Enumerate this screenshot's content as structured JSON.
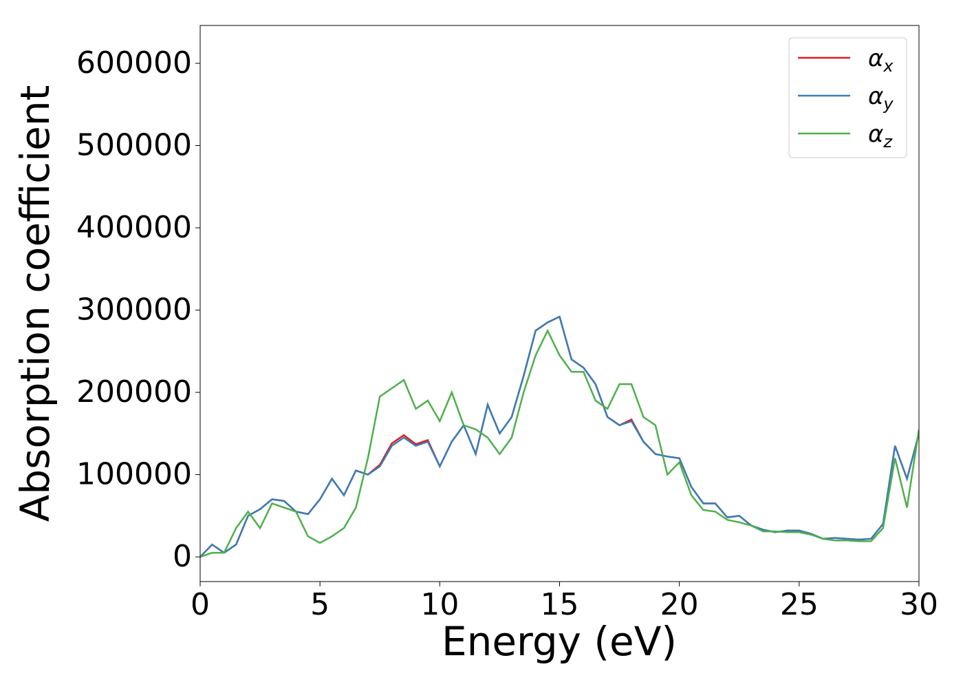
{
  "chart_data": {
    "type": "line",
    "xlabel": "Energy (eV)",
    "ylabel": "Absorption coefficient",
    "x": [
      0,
      0.5,
      1,
      1.5,
      2,
      2.5,
      3,
      3.5,
      4,
      4.5,
      5,
      5.5,
      6,
      6.5,
      7,
      7.5,
      8,
      8.5,
      9,
      9.5,
      10,
      10.5,
      11,
      11.5,
      12,
      12.5,
      13,
      13.5,
      14,
      14.5,
      15,
      15.5,
      16,
      16.5,
      17,
      17.5,
      18,
      18.5,
      19,
      19.5,
      20,
      20.5,
      21,
      21.5,
      22,
      22.5,
      23,
      23.5,
      24,
      24.5,
      25,
      25.5,
      26,
      26.5,
      27,
      27.5,
      28,
      28.5,
      29,
      29.5,
      30
    ],
    "series": [
      {
        "name": "αx",
        "color": "#e41a1c",
        "values": [
          0,
          15000,
          5000,
          15000,
          50000,
          58000,
          70000,
          68000,
          55000,
          52000,
          70000,
          95000,
          75000,
          105000,
          100000,
          112000,
          138000,
          148000,
          137000,
          142000,
          110000,
          140000,
          160000,
          125000,
          185000,
          150000,
          170000,
          220000,
          275000,
          285000,
          292000,
          240000,
          230000,
          210000,
          170000,
          160000,
          167000,
          140000,
          125000,
          122000,
          120000,
          85000,
          65000,
          65000,
          48000,
          50000,
          38000,
          33000,
          30000,
          32000,
          32000,
          28000,
          22000,
          23000,
          22000,
          21000,
          22000,
          40000,
          135000,
          95000,
          150000
        ]
      },
      {
        "name": "αy",
        "color": "#377eb8",
        "values": [
          0,
          15000,
          5000,
          15000,
          50000,
          58000,
          70000,
          68000,
          55000,
          52000,
          70000,
          95000,
          75000,
          105000,
          100000,
          110000,
          135000,
          145000,
          135000,
          140000,
          110000,
          140000,
          160000,
          125000,
          185000,
          150000,
          170000,
          220000,
          275000,
          285000,
          292000,
          240000,
          230000,
          210000,
          170000,
          160000,
          165000,
          140000,
          125000,
          122000,
          120000,
          85000,
          65000,
          65000,
          48000,
          50000,
          38000,
          33000,
          30000,
          32000,
          32000,
          28000,
          22000,
          23000,
          22000,
          21000,
          22000,
          40000,
          135000,
          95000,
          150000
        ]
      },
      {
        "name": "αz",
        "color": "#4daf4a",
        "values": [
          0,
          5000,
          5000,
          35000,
          55000,
          35000,
          65000,
          60000,
          55000,
          25000,
          17000,
          25000,
          35000,
          60000,
          120000,
          195000,
          205000,
          215000,
          180000,
          190000,
          165000,
          200000,
          160000,
          155000,
          145000,
          125000,
          145000,
          200000,
          245000,
          275000,
          245000,
          225000,
          225000,
          190000,
          180000,
          210000,
          210000,
          170000,
          160000,
          100000,
          115000,
          75000,
          57000,
          55000,
          45000,
          42000,
          38000,
          31000,
          31000,
          30000,
          30000,
          27000,
          22000,
          20000,
          20000,
          19000,
          19000,
          35000,
          120000,
          60000,
          155000
        ]
      }
    ],
    "xlim": [
      0,
      30
    ],
    "xticks": [
      0,
      5,
      10,
      15,
      20,
      25,
      30
    ],
    "ylim": [
      -30000,
      646000
    ],
    "yticks": [
      0,
      100000,
      200000,
      300000,
      400000,
      500000,
      600000
    ],
    "legend": "upper right"
  }
}
